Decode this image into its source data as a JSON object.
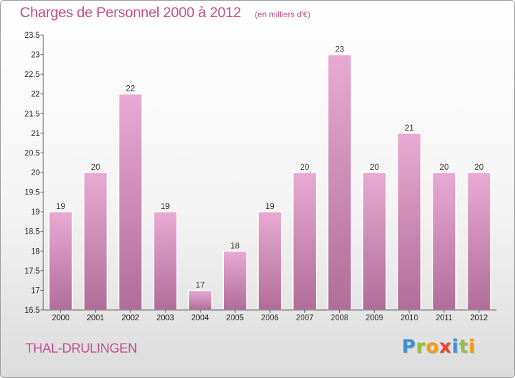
{
  "title": "Charges de Personnel 2000 à 2012",
  "unit_note": "(en milliers d'€)",
  "commune": "THAL-DRULINGEN",
  "brand": {
    "letters": [
      {
        "ch": "P",
        "color": "#3a8fd8"
      },
      {
        "ch": "r",
        "color": "#8cc63e"
      },
      {
        "ch": "o",
        "color": "#f39c12"
      },
      {
        "ch": "x",
        "color": "#e8442e"
      },
      {
        "ch": "i",
        "color": "#3a8fd8"
      },
      {
        "ch": "t",
        "color": "#8cc63e"
      },
      {
        "ch": "i",
        "color": "#f39c12"
      }
    ]
  },
  "colors": {
    "title": "#c2508f",
    "bar_top": "#e8aad3",
    "bar_bottom": "#b06d98",
    "axis": "#555555"
  },
  "chart_data": {
    "type": "bar",
    "title": "Charges de Personnel 2000 à 2012",
    "categories": [
      "2000",
      "2001",
      "2002",
      "2003",
      "2004",
      "2005",
      "2006",
      "2007",
      "2008",
      "2009",
      "2010",
      "2011",
      "2012"
    ],
    "values": [
      19,
      20,
      22,
      19,
      17,
      18,
      19,
      20,
      23,
      20,
      21,
      20,
      20
    ],
    "value_labels": [
      "19",
      "20",
      "22",
      "19",
      "17",
      "18",
      "19",
      "20",
      "23",
      "20",
      "21",
      "20",
      "20"
    ],
    "ylim": [
      16.5,
      23.5
    ],
    "yticks": [
      16.5,
      17,
      17.5,
      18,
      18.5,
      19,
      19.5,
      20,
      20.5,
      21,
      21.5,
      22,
      22.5,
      23,
      23.5
    ],
    "ytick_labels": [
      "16.5",
      "17",
      "17.5",
      "18",
      "18.5",
      "19",
      "19.5",
      "20",
      "20.5",
      "21",
      "21.5",
      "22",
      "22.5",
      "23",
      "23.5"
    ],
    "grid": false,
    "legend": "none"
  }
}
